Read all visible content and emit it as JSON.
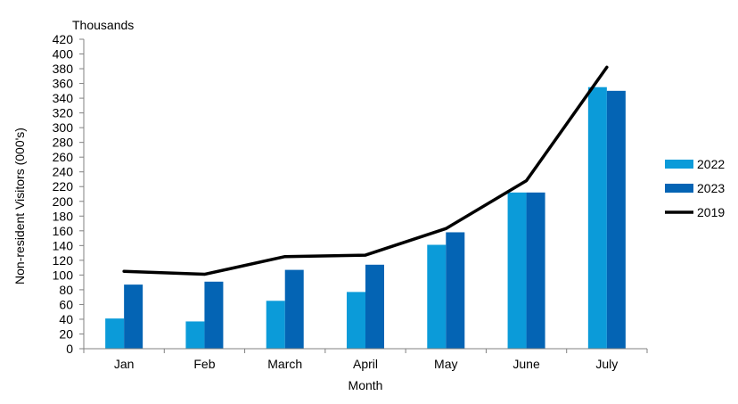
{
  "chart_data": {
    "type": "bar",
    "categories": [
      "Jan",
      "Feb",
      "March",
      "April",
      "May",
      "June",
      "July"
    ],
    "series": [
      {
        "name": "2022",
        "type": "bar",
        "color": "#0B9BD9",
        "values": [
          41,
          37,
          65,
          77,
          141,
          212,
          355
        ]
      },
      {
        "name": "2023",
        "type": "bar",
        "color": "#0464B4",
        "values": [
          87,
          91,
          107,
          114,
          158,
          212,
          350
        ]
      },
      {
        "name": "2019",
        "type": "line",
        "color": "#000000",
        "values": [
          105,
          101,
          125,
          127,
          163,
          228,
          382
        ]
      }
    ],
    "unit_label": "Thousands",
    "xlabel": "Month",
    "ylabel": "Non-resident Visitors (000's)",
    "ylim": [
      0,
      420
    ],
    "ytick_step": 20,
    "grid": false,
    "legend_position": "right"
  }
}
